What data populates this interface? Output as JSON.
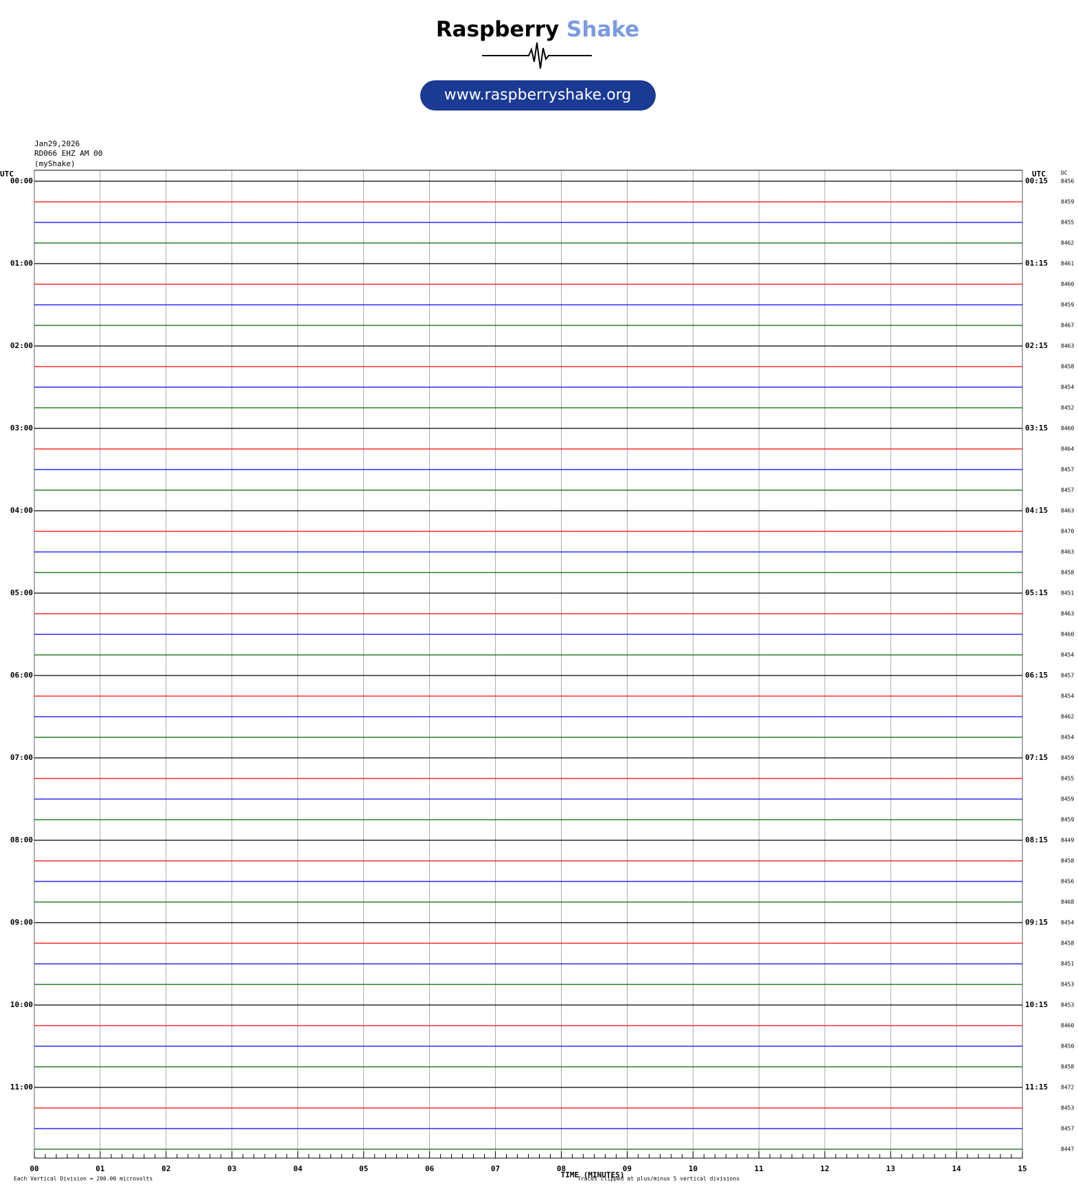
{
  "header": {
    "brand": "Raspberry",
    "brand_accent": "Shake",
    "url": "www.raspberryshake.org"
  },
  "info": {
    "date": "Jan29,2026",
    "station": "RD066 EHZ AM 00",
    "owner": "(myShake)"
  },
  "left_axis": {
    "title": "UTC",
    "labels": [
      "00:00",
      "01:00",
      "02:00",
      "03:00",
      "04:00",
      "05:00",
      "06:00",
      "07:00",
      "08:00",
      "09:00",
      "10:00",
      "11:00"
    ]
  },
  "right_axis": {
    "title": "UTC",
    "labels": [
      "00:15",
      "01:15",
      "02:15",
      "03:15",
      "04:15",
      "05:15",
      "06:15",
      "07:15",
      "08:15",
      "09:15",
      "10:15",
      "11:15"
    ]
  },
  "dc": {
    "title": "DC",
    "values": [
      8456,
      8459,
      8455,
      8462,
      8461,
      8460,
      8459,
      8467,
      8463,
      8458,
      8454,
      8452,
      8460,
      8464,
      8457,
      8457,
      8463,
      8470,
      8463,
      8458,
      8451,
      8463,
      8460,
      8454,
      8457,
      8454,
      8462,
      8454,
      8459,
      8455,
      8459,
      8459,
      8449,
      8458,
      8456,
      8468,
      8454,
      8458,
      8451,
      8453,
      8453,
      8460,
      8450,
      8458,
      8472,
      8453,
      8457,
      8447
    ]
  },
  "trace_colors": [
    "#000000",
    "#ff0000",
    "#0000ff",
    "#006400"
  ],
  "x_axis": {
    "title": "TIME (MINUTES)",
    "labels": [
      "00",
      "01",
      "02",
      "03",
      "04",
      "05",
      "06",
      "07",
      "08",
      "09",
      "10",
      "11",
      "12",
      "13",
      "14",
      "15"
    ]
  },
  "footer": {
    "scale": "Each Vertical Division =  200.00 microvolts",
    "clip": "Traces clipped at plus/minus 5 vertical divisions"
  }
}
